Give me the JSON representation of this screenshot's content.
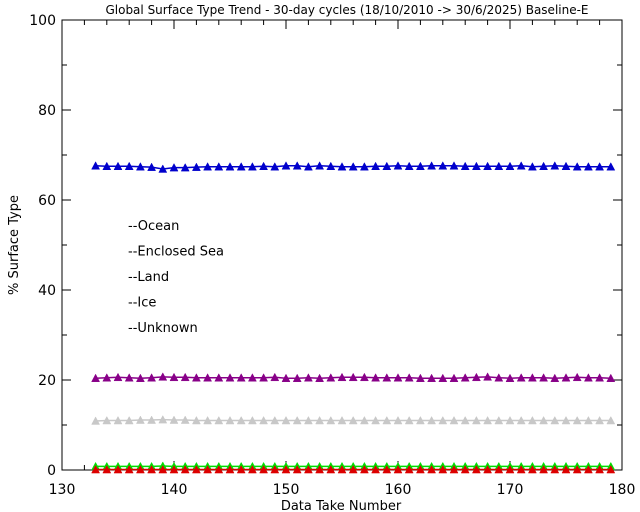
{
  "chart_data": {
    "type": "line",
    "title": "Global Surface Type Trend - 30-day cycles (18/10/2010 -> 30/6/2025) Baseline-E",
    "xlabel": "Data Take Number",
    "ylabel": "% Surface Type",
    "xlim": [
      130,
      180
    ],
    "ylim": [
      0,
      100
    ],
    "xticks": [
      130,
      140,
      150,
      160,
      170,
      180
    ],
    "yticks": [
      0,
      20,
      40,
      60,
      80,
      100
    ],
    "grid": false,
    "legend_position": "left-middle",
    "marker": "triangle",
    "x": [
      133,
      134,
      135,
      136,
      137,
      138,
      139,
      140,
      141,
      142,
      143,
      144,
      145,
      146,
      147,
      148,
      149,
      150,
      151,
      152,
      153,
      154,
      155,
      156,
      157,
      158,
      159,
      160,
      161,
      162,
      163,
      164,
      165,
      166,
      167,
      168,
      169,
      170,
      171,
      172,
      173,
      174,
      175,
      176,
      177,
      178,
      179
    ],
    "series": [
      {
        "name": "Ocean",
        "legend_label": "--Ocean",
        "color": "#0000cc",
        "values": [
          67.6,
          67.5,
          67.5,
          67.5,
          67.4,
          67.3,
          66.9,
          67.2,
          67.2,
          67.3,
          67.4,
          67.4,
          67.4,
          67.4,
          67.4,
          67.5,
          67.4,
          67.6,
          67.6,
          67.4,
          67.6,
          67.5,
          67.4,
          67.4,
          67.4,
          67.5,
          67.5,
          67.6,
          67.5,
          67.5,
          67.6,
          67.6,
          67.6,
          67.5,
          67.5,
          67.5,
          67.5,
          67.5,
          67.6,
          67.4,
          67.5,
          67.6,
          67.5,
          67.4,
          67.4,
          67.4,
          67.4
        ]
      },
      {
        "name": "Enclosed Sea",
        "legend_label": "--Enclosed Sea",
        "color": "#00dd00",
        "values": [
          0.8,
          0.8,
          0.8,
          0.8,
          0.8,
          0.8,
          0.9,
          0.8,
          0.8,
          0.8,
          0.8,
          0.8,
          0.8,
          0.8,
          0.8,
          0.8,
          0.8,
          0.8,
          0.8,
          0.8,
          0.8,
          0.8,
          0.8,
          0.8,
          0.8,
          0.8,
          0.8,
          0.8,
          0.8,
          0.8,
          0.8,
          0.8,
          0.8,
          0.8,
          0.8,
          0.8,
          0.8,
          0.8,
          0.8,
          0.8,
          0.8,
          0.8,
          0.8,
          0.8,
          0.8,
          0.8,
          0.8
        ]
      },
      {
        "name": "Land",
        "legend_label": "--Land",
        "color": "#880088",
        "values": [
          20.4,
          20.5,
          20.6,
          20.5,
          20.4,
          20.5,
          20.7,
          20.6,
          20.6,
          20.5,
          20.5,
          20.5,
          20.5,
          20.5,
          20.5,
          20.5,
          20.6,
          20.4,
          20.4,
          20.5,
          20.4,
          20.5,
          20.6,
          20.6,
          20.6,
          20.5,
          20.5,
          20.5,
          20.5,
          20.4,
          20.4,
          20.4,
          20.4,
          20.5,
          20.6,
          20.7,
          20.5,
          20.4,
          20.5,
          20.5,
          20.5,
          20.4,
          20.5,
          20.6,
          20.5,
          20.5,
          20.4
        ]
      },
      {
        "name": "Ice",
        "legend_label": "--Ice",
        "color": "#c8c8c8",
        "values": [
          10.9,
          11.0,
          11.0,
          11.0,
          11.1,
          11.1,
          11.2,
          11.1,
          11.1,
          11.0,
          11.0,
          11.0,
          11.0,
          11.0,
          11.0,
          11.0,
          11.0,
          11.0,
          11.0,
          11.0,
          11.0,
          11.0,
          11.0,
          11.0,
          11.0,
          11.0,
          11.0,
          11.0,
          11.0,
          11.0,
          11.0,
          11.0,
          11.0,
          11.0,
          11.0,
          11.0,
          11.0,
          11.0,
          11.0,
          11.0,
          11.0,
          11.0,
          11.0,
          11.0,
          11.0,
          11.0,
          11.0
        ]
      },
      {
        "name": "Unknown",
        "legend_label": "--Unknown",
        "color": "#dd0000",
        "values": [
          0.1,
          0.1,
          0.1,
          0.1,
          0.1,
          0.1,
          0.1,
          0.1,
          0.1,
          0.1,
          0.1,
          0.1,
          0.1,
          0.1,
          0.1,
          0.1,
          0.1,
          0.1,
          0.1,
          0.1,
          0.1,
          0.1,
          0.1,
          0.1,
          0.1,
          0.1,
          0.1,
          0.1,
          0.1,
          0.1,
          0.1,
          0.1,
          0.1,
          0.1,
          0.1,
          0.1,
          0.1,
          0.1,
          0.1,
          0.1,
          0.1,
          0.1,
          0.1,
          0.1,
          0.1,
          0.1,
          0.1
        ]
      }
    ]
  }
}
